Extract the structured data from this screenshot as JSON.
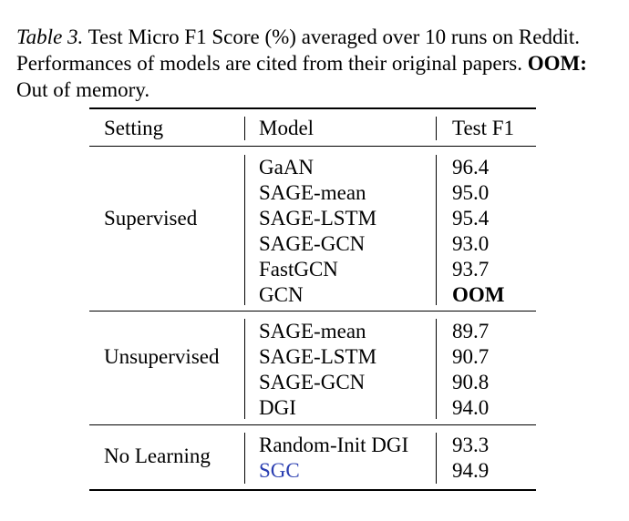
{
  "caption": {
    "label": "Table 3.",
    "text": " Test Micro F1 Score (%) averaged over 10 runs on Reddit. Performances of models are cited from their original papers. ",
    "oom_key": "OOM:",
    "oom_desc": " Out of memory."
  },
  "table": {
    "headers": {
      "setting": "Setting",
      "model": "Model",
      "f1": "Test F1"
    },
    "groups": [
      {
        "setting": "Supervised",
        "rows": [
          {
            "model": "GaAN",
            "f1": "96.4"
          },
          {
            "model": "SAGE-mean",
            "f1": "95.0"
          },
          {
            "model": "SAGE-LSTM",
            "f1": "95.4"
          },
          {
            "model": "SAGE-GCN",
            "f1": "93.0"
          },
          {
            "model": "FastGCN",
            "f1": "93.7"
          },
          {
            "model": "GCN",
            "f1": "OOM"
          }
        ]
      },
      {
        "setting": "Unsupervised",
        "rows": [
          {
            "model": "SAGE-mean",
            "f1": "89.7"
          },
          {
            "model": "SAGE-LSTM",
            "f1": "90.7"
          },
          {
            "model": "SAGE-GCN",
            "f1": "90.8"
          },
          {
            "model": "DGI",
            "f1": "94.0"
          }
        ]
      },
      {
        "setting": "No Learning",
        "rows": [
          {
            "model": "Random-Init DGI",
            "f1": "93.3"
          },
          {
            "model": "SGC",
            "f1": "94.9"
          }
        ]
      }
    ],
    "highlight_color": "#2a3eb1"
  }
}
